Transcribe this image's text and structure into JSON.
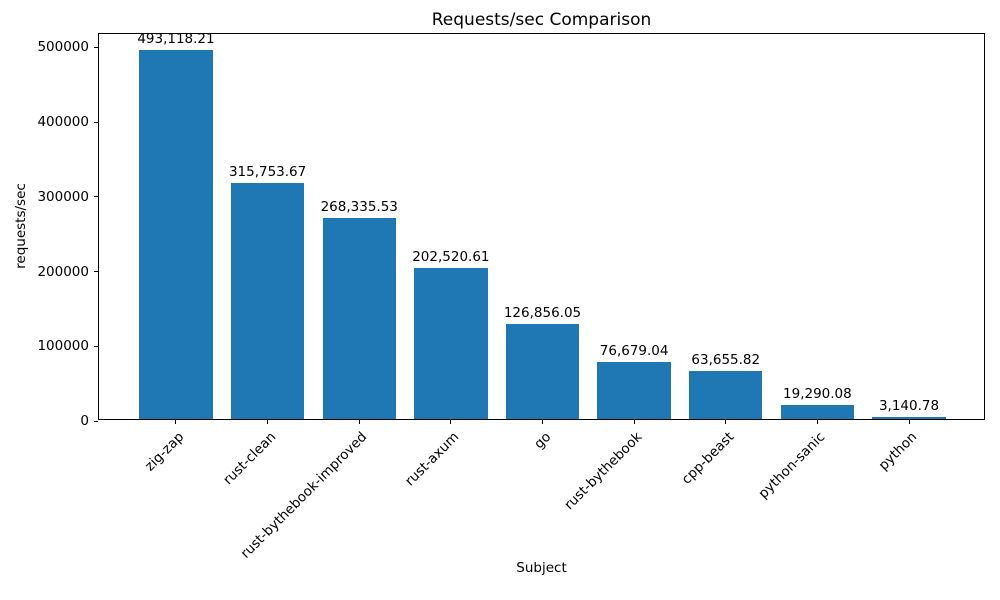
{
  "chart_data": {
    "type": "bar",
    "title": "Requests/sec Comparison",
    "xlabel": "Subject",
    "ylabel": "requests/sec",
    "categories": [
      "zig-zap",
      "rust-clean",
      "rust-bythebook-improved",
      "rust-axum",
      "go",
      "rust-bythebook",
      "cpp-beast",
      "python-sanic",
      "python"
    ],
    "values": [
      493118.21,
      315753.67,
      268335.53,
      202520.61,
      126856.05,
      76679.04,
      63655.82,
      19290.08,
      3140.78
    ],
    "value_labels": [
      "493,118.21",
      "315,753.67",
      "268,335.53",
      "202,520.61",
      "126,856.05",
      "76,679.04",
      "63,655.82",
      "19,290.08",
      "3,140.78"
    ],
    "yticks": [
      0,
      100000,
      200000,
      300000,
      400000,
      500000
    ],
    "ytick_labels": [
      "0",
      "100000",
      "200000",
      "300000",
      "400000",
      "500000"
    ],
    "ylim": [
      0,
      517774
    ],
    "bar_color": "#1f77b4",
    "bar_width_fraction": 0.8,
    "x_margin_units": 0.44,
    "grid": false,
    "legend_position": "none"
  }
}
